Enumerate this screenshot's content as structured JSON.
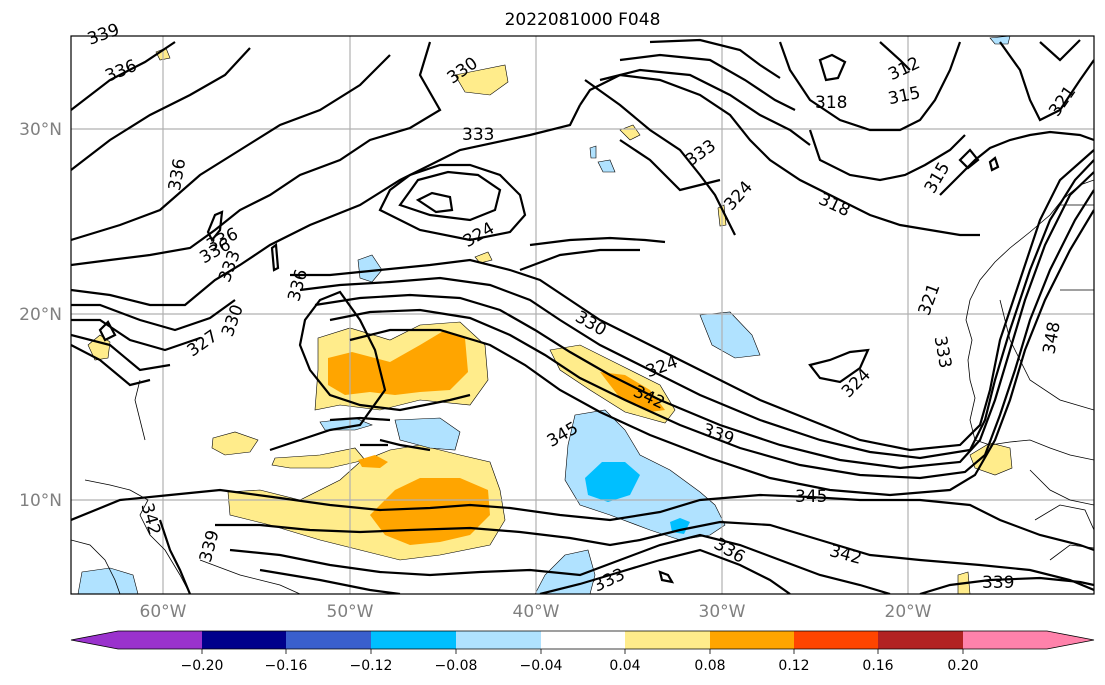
{
  "title": "2022081000 F048",
  "map": {
    "lat_ticks": [
      "30°N",
      "20°N",
      "10°N"
    ],
    "lon_ticks": [
      "60°W",
      "50°W",
      "40°W",
      "30°W",
      "20°W"
    ],
    "contour_labels": [
      "339",
      "336",
      "336",
      "330",
      "333",
      "318",
      "312",
      "315",
      "321",
      "333",
      "324",
      "315",
      "318",
      "336",
      "333",
      "324",
      "336",
      "330",
      "327",
      "336",
      "321",
      "330",
      "324",
      "333",
      "348",
      "342",
      "324",
      "345",
      "339",
      "345",
      "342",
      "342",
      "339",
      "336",
      "333",
      "339"
    ]
  },
  "colorbar": {
    "colors": [
      "#9a32cd",
      "#00008b",
      "#3a5fcd",
      "#00bfff",
      "#b0e2ff",
      "#ffffff",
      "#ffec8b",
      "#ffa500",
      "#ff4500",
      "#b22222",
      "#ff82ab"
    ],
    "ticks": [
      "−0.20",
      "−0.16",
      "−0.12",
      "−0.08",
      "−0.04",
      "0.04",
      "0.08",
      "0.12",
      "0.16",
      "0.20"
    ]
  }
}
